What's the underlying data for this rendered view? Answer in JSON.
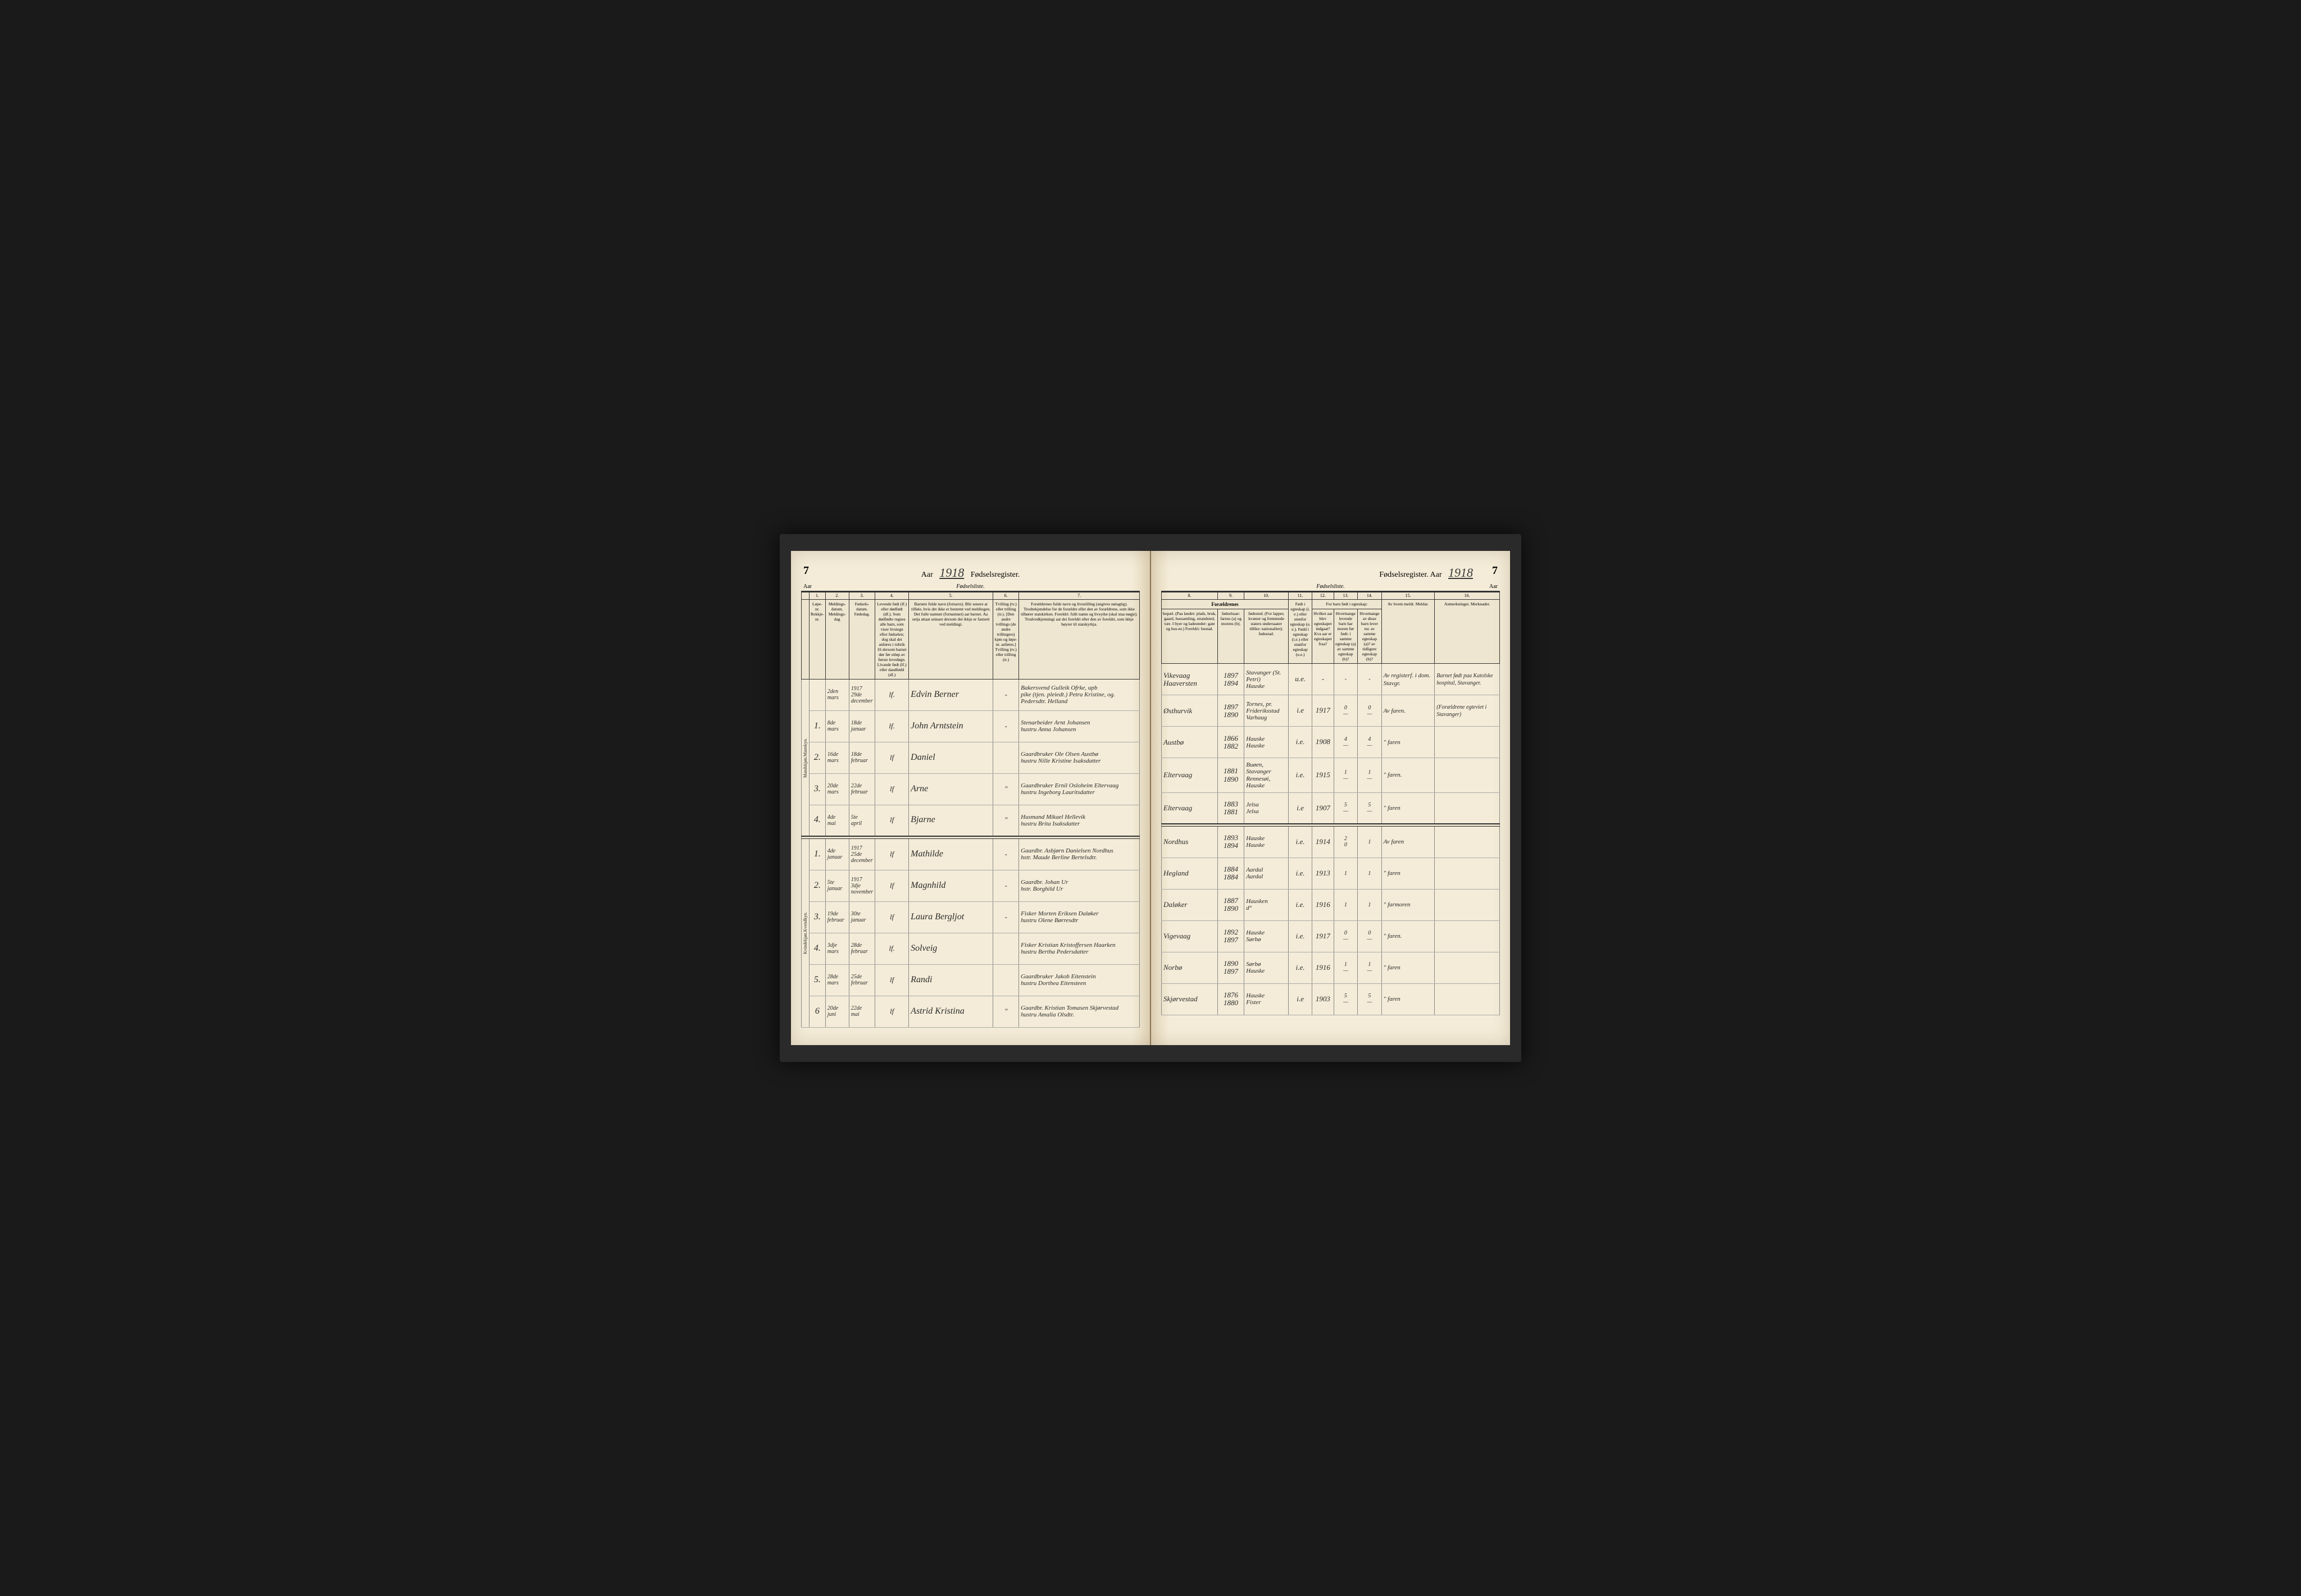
{
  "year": "1918",
  "page_num": "7",
  "title_left": "Fødselsregister.",
  "title_right": "Fødselsregister. Aar",
  "subtitle_left_a": "Aar",
  "subtitle_left_b": "Fødselsliste.",
  "subtitle_right_a": "Fødselsliste.",
  "subtitle_right_b": "Aar",
  "colors": {
    "page_bg": "#f4ecd8",
    "ink": "#2a2a2a",
    "rule": "#333333",
    "book_bg": "#1a1a1a"
  },
  "headers_left": {
    "nums": [
      "1.",
      "2.",
      "3.",
      "4.",
      "5.",
      "6.",
      "7."
    ],
    "c1": "Løpe-nr.\nRekkje-nr.",
    "c2": "Meldings-datum.\nMeldings-dag",
    "c3": "Fødsels-datum.\nFødedag.",
    "c4": "Levende født (lf.) eller dødfødt (df.). Som dødfødte regnes alle barn, som viser livstegn efter fødselen; dog skal det anføres i rubrik 16 dersom barnet dør før utløp av første levedøgn.\nLivande født (lf.) eller daudfødd (df.)",
    "c5": "Barnets fulde navn (fornavn). Blir senere at tilføie, hvis det ikke er bestemt ved meldingen.\nDet fulle namnet (fornamnet) aat barnet. Aa setja attaat seinare dersom det ikkje er fastsett ved meldingi.",
    "c6": "Tvilling (tv.) eller trilling (tr.). [Den andre tvillings (de andre trillingers) kjøn og løpe-nr. anføres.]\nTvilling (tv.) eller trilling (tr.)",
    "c7": "Forældrenes fulde navn og livsstilling (angives nøiagtig). Trosbekjendelse for de forældre eller den av forældrene, som ikke tilhører statskirken.\nForeldri: fullt namn og livsyrke (skal staa nøgje). Trudvedkjenningi aat dei foreldri eller den av foreldri, som ikkje høyrer til statskyrkja."
  },
  "headers_right": {
    "nums": [
      "8.",
      "9.",
      "10.",
      "11.",
      "12.",
      "13.",
      "14.",
      "15.",
      "16."
    ],
    "grp_foreldrenes": "Forældrenes",
    "grp_barn": "For barn født i egteskap:",
    "c8": "bopæl. (Paa landet: plads, bruk, gaard, hussamling, strandsted, vær. I byer og ladesteder: gate og hus-nr.)\nForeldri: bustad.",
    "c9": "fødselsaar:\nfarens (a)\nog morens (b).",
    "c10": "fødested. (For lapper, kvæner og fremmede staters undersaater tillike: nationalitet).\nfødestad.",
    "c11": "Født i egteskap (i. e.) eller utenfor egteskap (u. e.).\nFødd i egteskap (i.e.) eller utanfor egteskap (u.e.)",
    "c12": "Hvilket aar blev egteskapet indgaat?\nKva aar er egteskapet fraa?",
    "c13": "Hvormange levende barn har moren før født: i samme egteskap (a) av samme egteskap (b)?",
    "c14": "Hvormange av disse barn lever nu: av samme egteskap (a)? av tidligere egteskap (b)?",
    "c15": "Av hvem meldt.\nMeldar.",
    "c16": "Anmerkninger.\nMerknader."
  },
  "section_labels": {
    "male": "Mandskjøn.\nMannkyn.",
    "female": "Kvindekjøn.\nKvendkyn."
  },
  "rows_male": [
    {
      "num": "",
      "meld": "2den\nmars",
      "fods": "1917\n29de december",
      "lf": "lf.",
      "navn": "Edvin Berner",
      "tv": "-",
      "foreldre": "Bakersvend Gulleik Ofrke, upb\npike (tjen. pleiedt.) Petra Kristine, og.\nPedersdtr. Helland",
      "bopael": "Vikevaag\nHaaversten",
      "aar": "1897\n1894",
      "fodested": "Stavanger (St. Petri)\nHauske",
      "ie": "u.e.",
      "egte": "-",
      "c13": "-",
      "c14": "-",
      "meldt": "Av registerf. i dom. Stavgr.",
      "anm": "Barnet født paa Katolske hospital, Stavanger."
    },
    {
      "num": "1.",
      "meld": "8de\nmars",
      "fods": "18de\njanuar",
      "lf": "lf.",
      "navn": "John Arntstein",
      "tv": "-",
      "foreldre": "Stenarbeider Arnt Johansen\nhustru Anna Johansen",
      "bopael": "Østhurvik",
      "aar": "1897\n1890",
      "fodested": "Tornes, pr. Frideriksstad\nVarhaug",
      "ie": "i.e",
      "egte": "1917",
      "c13": "0\n—",
      "c14": "0\n—",
      "meldt": "Av faren.",
      "anm": "(Forældrene egteviet i Stavanger)"
    },
    {
      "num": "2.",
      "meld": "16de\nmars",
      "fods": "18de\nfebruar",
      "lf": "lf",
      "navn": "Daniel",
      "tv": "",
      "foreldre": "Gaardbruker Ole Olsen Austbø\nhustru Nille Kristine Isaksdatter",
      "bopael": "Austbø",
      "aar": "1866\n1882",
      "fodested": "Hauske\nHauske",
      "ie": "i.e.",
      "egte": "1908",
      "c13": "4\n—",
      "c14": "4\n—",
      "meldt": "\" faren",
      "anm": ""
    },
    {
      "num": "3.",
      "meld": "20de\nmars",
      "fods": "22de\nfebruar",
      "lf": "lf",
      "navn": "Arne",
      "tv": "\"",
      "foreldre": "Gaardbruker Ernil Osloheim Eltervaag\nhustru Ingeborg Lauritsdatter",
      "bopael": "Eltervaag",
      "aar": "1881\n1890",
      "fodested": "Buøen, Stavanger\nRennesøi, Hauske",
      "ie": "i.e.",
      "egte": "1915",
      "c13": "1\n—",
      "c14": "1\n—",
      "meldt": "\" faren.",
      "anm": ""
    },
    {
      "num": "4.",
      "meld": "4de\nmai",
      "fods": "5te\napril",
      "lf": "lf",
      "navn": "Bjarne",
      "tv": "\"",
      "foreldre": "Husmand Mikael Hellevik\nhustru Brita Isaksdatter",
      "bopael": "Eltervaag",
      "aar": "1883\n1881",
      "fodested": "Jelsa\nJelsa",
      "ie": "i.e",
      "egte": "1907",
      "c13": "5\n—",
      "c14": "5\n—",
      "meldt": "\" faren",
      "anm": ""
    }
  ],
  "rows_female": [
    {
      "num": "1.",
      "meld": "4de\njanuar",
      "fods": "1917\n25de december",
      "lf": "lf",
      "navn": "Mathilde",
      "tv": "-",
      "foreldre": "Gaardbr. Asbjørn Danielsen Nordhus\nhstr. Maude Berline Bertelsdtr.",
      "bopael": "Nordhus",
      "aar": "1893\n1894",
      "fodested": "Hauske\nHauske",
      "ie": "i.e.",
      "egte": "1914",
      "c13": "2\n0",
      "c14": "1\n",
      "meldt": "Av faren",
      "anm": ""
    },
    {
      "num": "2.",
      "meld": "5te\njanuar",
      "fods": "1917\n3dje november",
      "lf": "lf",
      "navn": "Magnhild",
      "tv": "-",
      "foreldre": "Gaardbr. Johan Ur\nhstr. Borghild Ur",
      "bopael": "Hegland",
      "aar": "1884\n1884",
      "fodested": "Aardal\nAardal",
      "ie": "i.e.",
      "egte": "1913",
      "c13": "1\n",
      "c14": "1\n",
      "meldt": "\" faren",
      "anm": ""
    },
    {
      "num": "3.",
      "meld": "19de\nfebruar",
      "fods": "30te\njanuar",
      "lf": "lf",
      "navn": "Laura Bergljot",
      "tv": "-",
      "foreldre": "Fisker Morten Eriksen Daløker\nhustru Olene Børresdtr",
      "bopael": "Daløker",
      "aar": "1887\n1890",
      "fodested": "Hausken\nd°",
      "ie": "i.e.",
      "egte": "1916",
      "c13": "1",
      "c14": "1",
      "meldt": "\" farmoren",
      "anm": ""
    },
    {
      "num": "4.",
      "meld": "3dje\nmars",
      "fods": "28de\nfebruar",
      "lf": "lf.",
      "navn": "Solveig",
      "tv": "",
      "foreldre": "Fisker Kristian Kristoffersen Haarken\nhustru Bertha Pedersdatter",
      "bopael": "Vigevaag",
      "aar": "1892\n1897",
      "fodested": "Hauske\nSørbø",
      "ie": "i.e.",
      "egte": "1917",
      "c13": "0\n—",
      "c14": "0\n—",
      "meldt": "\" faren.",
      "anm": ""
    },
    {
      "num": "5.",
      "meld": "28de\nmars",
      "fods": "25de\nfebruar",
      "lf": "lf",
      "navn": "Randi",
      "tv": "",
      "foreldre": "Gaardbruker Jakob Eitenstein\nhustru Dorthea Eitensteen",
      "bopael": "Norbø",
      "aar": "1890\n1897",
      "fodested": "Sørbø\nHauske",
      "ie": "i.e.",
      "egte": "1916",
      "c13": "1\n—",
      "c14": "1\n—",
      "meldt": "\" faren",
      "anm": ""
    },
    {
      "num": "6",
      "meld": "20de\njuni",
      "fods": "22de\nmai",
      "lf": "lf",
      "navn": "Astrid Kristina",
      "tv": "\"",
      "foreldre": "Gaardbr. Kristian Tomasen Skjørvestad\nhustru Amalia Olsdtr.",
      "bopael": "Skjørvestad",
      "aar": "1876\n1880",
      "fodested": "Hauske\nFister",
      "ie": "i.e",
      "egte": "1903",
      "c13": "5\n—",
      "c14": "5\n—",
      "meldt": "\" faren",
      "anm": ""
    }
  ]
}
